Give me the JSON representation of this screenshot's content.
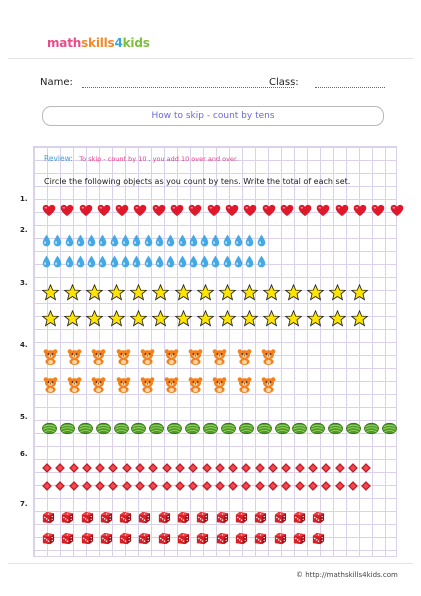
{
  "logo": {
    "part_a": "math",
    "part_b": "skills",
    "part_c": "4",
    "part_d": "kids"
  },
  "header": {
    "name_label": "Name:",
    "class_label": "Class:"
  },
  "title": "How to skip - count by tens",
  "review": {
    "label": "Review:",
    "text": "To skip - count by 10 , you  add 10 over and over."
  },
  "instructions": "Circle the following objects as you count by tens. Write the total of each set.",
  "exercises": [
    {
      "number": "1.",
      "object": "heart-icon",
      "rows": [
        20
      ],
      "color": "#e0182b"
    },
    {
      "number": "2.",
      "object": "water-drop-icon",
      "rows": [
        20,
        20
      ],
      "color": "#45a9e6"
    },
    {
      "number": "3.",
      "object": "star-icon",
      "rows": [
        15,
        15
      ],
      "color": "#ffe400"
    },
    {
      "number": "4.",
      "object": "bear-icon",
      "rows": [
        10,
        10
      ],
      "color": "#f2821f"
    },
    {
      "number": "5.",
      "object": "melon-icon",
      "rows": [
        20
      ],
      "color": "#4f9a2a"
    },
    {
      "number": "6.",
      "object": "red-gem-icon",
      "rows": [
        25,
        25
      ],
      "color": "#d81f2a"
    },
    {
      "number": "7.",
      "object": "die-icon",
      "rows": [
        15,
        15
      ],
      "color": "#d61f26"
    }
  ],
  "footer": {
    "copyright": "© http://mathskills4kids.com"
  }
}
